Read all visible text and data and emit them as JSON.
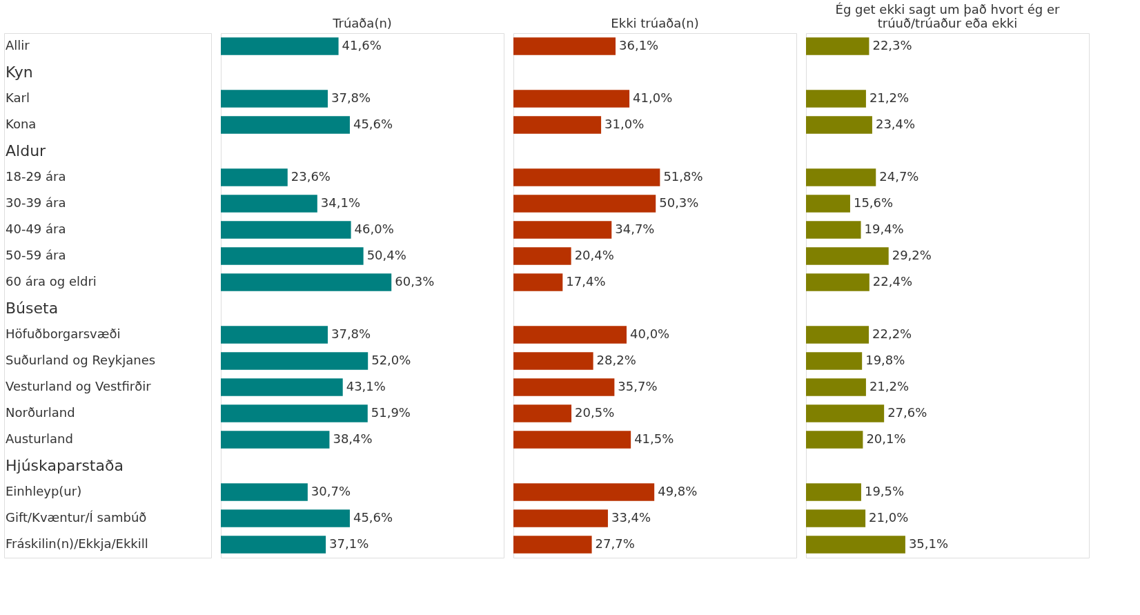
{
  "chart_data": [
    {
      "type": "bar",
      "orientation": "horizontal",
      "title": "Trúaða(n)",
      "xlim": [
        0,
        100
      ],
      "tick_labels": "y",
      "categories": [
        "Allir",
        "Kyn",
        "Karl",
        "Kona",
        "Aldur",
        "18-29 ára",
        "30-39 ára",
        "40-49 ára",
        "50-59 ára",
        "60 ára og eldri",
        "Búseta",
        "Höfuðborgarsvæði",
        "Suðurland og Reykjanes",
        "Vesturland og Vestfirðir",
        "Norðurland",
        "Austurland",
        "Hjúskaparstaða",
        "Einhleyp(ur)",
        "Gift/Kvæntur/Í sambúð",
        "Fráskilin(n)/Ekkja/Ekkill"
      ],
      "series": [
        {
          "color": "#008080",
          "values": [
            41.6,
            null,
            37.8,
            45.6,
            null,
            23.6,
            34.1,
            46.0,
            50.4,
            60.3,
            null,
            37.8,
            52.0,
            43.1,
            51.9,
            38.4,
            null,
            30.7,
            45.6,
            37.1
          ],
          "value_labels": [
            "41,6%",
            null,
            "37,8%",
            "45,6%",
            null,
            "23,6%",
            "34,1%",
            "46,0%",
            "50,4%",
            "60,3%",
            null,
            "37,8%",
            "52,0%",
            "43,1%",
            "51,9%",
            "38,4%",
            null,
            "30,7%",
            "45,6%",
            "37,1%"
          ]
        }
      ]
    },
    {
      "type": "bar",
      "orientation": "horizontal",
      "title": "Ekki trúaða(n)",
      "xlim": [
        0,
        100
      ],
      "tick_labels": false,
      "categories": [
        null,
        null,
        null,
        null,
        null,
        null,
        null,
        null,
        null,
        null,
        null,
        null,
        null,
        null,
        null,
        null,
        null,
        null,
        null,
        null
      ],
      "series": [
        {
          "color": "#b83200",
          "values": [
            36.1,
            null,
            41.0,
            31.0,
            null,
            51.8,
            50.3,
            34.7,
            20.4,
            17.4,
            null,
            40.0,
            28.2,
            35.7,
            20.5,
            41.5,
            null,
            49.8,
            33.4,
            27.7
          ],
          "value_labels": [
            "36,1%",
            null,
            "41,0%",
            "31,0%",
            null,
            "51,8%",
            "50,3%",
            "34,7%",
            "20,4%",
            "17,4%",
            null,
            "40,0%",
            "28,2%",
            "35,7%",
            "20,5%",
            "41,5%",
            null,
            "49,8%",
            "33,4%",
            "27,7%"
          ]
        }
      ]
    },
    {
      "type": "bar",
      "orientation": "horizontal",
      "title": "Ég get ekki sagt um það hvort ég er trúuð/trúaður eða ekki",
      "xlim": [
        0,
        100
      ],
      "tick_labels": false,
      "categories": [
        null,
        null,
        null,
        null,
        null,
        null,
        null,
        null,
        null,
        null,
        null,
        null,
        null,
        null,
        null,
        null,
        null,
        null,
        null,
        null
      ],
      "series": [
        {
          "color": "#808000",
          "values": [
            22.3,
            null,
            21.2,
            23.4,
            null,
            24.7,
            15.6,
            19.4,
            29.2,
            22.4,
            null,
            22.2,
            19.8,
            21.2,
            27.6,
            20.1,
            null,
            19.5,
            21.0,
            35.1
          ],
          "value_labels": [
            "22,3%",
            null,
            "21,2%",
            "23,4%",
            null,
            "24,7%",
            "15,6%",
            "19,4%",
            "29,2%",
            "22,4%",
            null,
            "22,2%",
            "19,8%",
            "21,2%",
            "27,6%",
            "20,1%",
            null,
            "19,5%",
            "21,0%",
            "35,1%"
          ]
        }
      ]
    }
  ]
}
